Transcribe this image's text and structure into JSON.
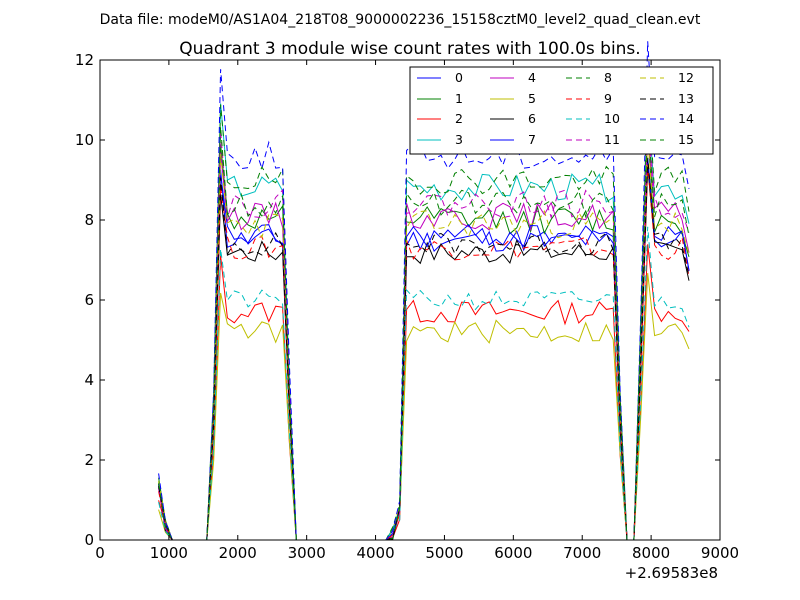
{
  "chart_data": {
    "type": "line",
    "suptitle": "Data file: modeM0/AS1A04_218T08_9000002236_15158cztM0_level2_quad_clean.evt",
    "title": "Quadrant 3 module wise count rates with 100.0s bins.",
    "xlabel": "",
    "ylabel": "",
    "x_offset_label": "+2.69583e8",
    "xlim": [
      0,
      9000
    ],
    "ylim": [
      0,
      12
    ],
    "x_ticks": [
      0,
      1000,
      2000,
      3000,
      4000,
      5000,
      6000,
      7000,
      8000,
      9000
    ],
    "x_tick_labels": [
      "0",
      "1000",
      "2000",
      "3000",
      "4000",
      "5000",
      "6000",
      "7000",
      "8000",
      "9000"
    ],
    "y_ticks": [
      0,
      2,
      4,
      6,
      8,
      10,
      12
    ],
    "y_tick_labels": [
      "0",
      "2",
      "4",
      "6",
      "8",
      "10",
      "12"
    ],
    "grid": false,
    "legend_placement": "top-right",
    "legend_columns": 4,
    "shape": {
      "x": [
        850,
        950,
        1050,
        1150,
        1250,
        1350,
        1450,
        1550,
        1650,
        1750,
        1850,
        1950,
        2050,
        2150,
        2250,
        2350,
        2450,
        2550,
        2650,
        2750,
        2850,
        2950,
        3050,
        3150,
        3250,
        3350,
        3450,
        3550,
        3650,
        3750,
        3850,
        3950,
        4050,
        4150,
        4250,
        4350,
        4450,
        4550,
        4650,
        4750,
        4850,
        4950,
        5050,
        5150,
        5250,
        5350,
        5450,
        5550,
        5650,
        5750,
        5850,
        5950,
        6050,
        6150,
        6250,
        6350,
        6450,
        6550,
        6650,
        6750,
        6850,
        6950,
        7050,
        7150,
        7250,
        7350,
        7450,
        7550,
        7650,
        7750,
        7850,
        7950,
        8050,
        8150,
        8250,
        8350,
        8450,
        8550
      ],
      "profile": [
        0.17,
        0.05,
        0,
        0,
        0,
        0,
        0,
        0,
        0.4,
        1.15,
        1,
        1,
        1,
        1,
        1,
        1,
        1,
        1,
        1,
        0.45,
        0,
        0,
        0,
        0,
        0,
        0,
        0,
        0,
        0,
        0,
        0,
        0,
        0,
        0,
        0.02,
        0.1,
        1,
        1,
        1,
        1,
        1,
        1,
        1,
        1,
        1,
        1,
        1,
        1,
        1,
        1,
        1,
        1,
        1,
        1,
        1,
        1,
        1,
        1,
        1,
        1,
        1,
        1,
        1,
        1,
        1,
        1,
        1,
        0.4,
        0,
        0,
        0.6,
        1.2,
        1,
        1,
        1,
        1,
        1,
        0.9
      ],
      "peaks": [
        [
          1750,
          1.22
        ],
        [
          7950,
          1.28
        ]
      ]
    },
    "series": [
      {
        "name": "0",
        "level": 7.5,
        "color": "#0000ff",
        "dash": "solid",
        "jitter": 0.3,
        "seed": 11
      },
      {
        "name": "1",
        "level": 8.0,
        "color": "#008000",
        "dash": "solid",
        "jitter": 0.35,
        "seed": 12
      },
      {
        "name": "2",
        "level": 5.7,
        "color": "#ff0000",
        "dash": "solid",
        "jitter": 0.3,
        "seed": 13
      },
      {
        "name": "3",
        "level": 8.8,
        "color": "#00bfbf",
        "dash": "solid",
        "jitter": 0.35,
        "seed": 14
      },
      {
        "name": "4",
        "level": 8.1,
        "color": "#bf00bf",
        "dash": "solid",
        "jitter": 0.35,
        "seed": 15
      },
      {
        "name": "5",
        "level": 5.2,
        "color": "#bfbf00",
        "dash": "solid",
        "jitter": 0.3,
        "seed": 16
      },
      {
        "name": "6",
        "level": 7.2,
        "color": "#000000",
        "dash": "solid",
        "jitter": 0.3,
        "seed": 17
      },
      {
        "name": "7",
        "level": 7.6,
        "color": "#0000ff",
        "dash": "solid",
        "jitter": 0.3,
        "seed": 18
      },
      {
        "name": "8",
        "level": 9.0,
        "color": "#008000",
        "dash": "dashed",
        "jitter": 0.35,
        "seed": 19
      },
      {
        "name": "9",
        "level": 7.3,
        "color": "#ff0000",
        "dash": "dashed",
        "jitter": 0.3,
        "seed": 20
      },
      {
        "name": "10",
        "level": 6.0,
        "color": "#00bfbf",
        "dash": "dashed",
        "jitter": 0.25,
        "seed": 21
      },
      {
        "name": "11",
        "level": 8.4,
        "color": "#bf00bf",
        "dash": "dashed",
        "jitter": 0.35,
        "seed": 22
      },
      {
        "name": "12",
        "level": 7.9,
        "color": "#bfbf00",
        "dash": "dashed",
        "jitter": 0.35,
        "seed": 23
      },
      {
        "name": "13",
        "level": 7.4,
        "color": "#000000",
        "dash": "dashed",
        "jitter": 0.3,
        "seed": 24
      },
      {
        "name": "14",
        "level": 9.6,
        "color": "#0000ff",
        "dash": "dashed",
        "jitter": 0.35,
        "seed": 25
      },
      {
        "name": "15",
        "level": 8.4,
        "color": "#008000",
        "dash": "dashed",
        "jitter": 0.35,
        "seed": 26
      }
    ]
  }
}
